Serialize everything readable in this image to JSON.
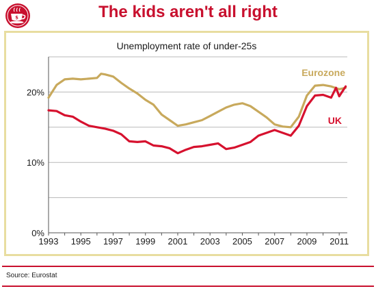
{
  "headline": "The kids aren't all right",
  "logo": {
    "icon": "teacup-logo-icon",
    "color": "#c8102e"
  },
  "source": "Source: Eurostat",
  "colors": {
    "eurozone": "#c8a95c",
    "uk": "#d6112e",
    "accent": "#c8102e",
    "frame": "#e8dda0"
  },
  "chart_data": {
    "type": "line",
    "title": "Unemployment rate of under-25s",
    "xlabel": "",
    "ylabel": "",
    "xlim": [
      1993,
      2011.5
    ],
    "ylim": [
      0,
      25
    ],
    "x_ticks": [
      "1993",
      "1995",
      "1997",
      "1999",
      "2001",
      "2003",
      "2005",
      "2007",
      "2009",
      "2011"
    ],
    "y_ticks": [
      "0%",
      "10%",
      "20%"
    ],
    "grid": "horizontal",
    "series": [
      {
        "name": "Eurozone",
        "x": [
          1993.0,
          1993.5,
          1994.0,
          1994.5,
          1995.0,
          1995.5,
          1996.0,
          1996.25,
          1996.5,
          1997.0,
          1997.5,
          1998.0,
          1998.5,
          1999.0,
          1999.5,
          2000.0,
          2000.5,
          2001.0,
          2001.5,
          2002.0,
          2002.5,
          2003.0,
          2003.5,
          2004.0,
          2004.5,
          2005.0,
          2005.5,
          2006.0,
          2006.5,
          2007.0,
          2007.5,
          2008.0,
          2008.5,
          2009.0,
          2009.5,
          2010.0,
          2010.5,
          2011.0,
          2011.4
        ],
        "values": [
          19.2,
          21.0,
          21.8,
          21.9,
          21.8,
          21.9,
          22.0,
          22.6,
          22.5,
          22.2,
          21.3,
          20.5,
          19.8,
          18.9,
          18.2,
          16.8,
          16.0,
          15.2,
          15.4,
          15.7,
          16.0,
          16.6,
          17.2,
          17.8,
          18.2,
          18.4,
          18.0,
          17.2,
          16.4,
          15.4,
          15.1,
          15.0,
          16.5,
          19.5,
          20.9,
          21.0,
          20.8,
          20.4,
          20.6
        ]
      },
      {
        "name": "UK",
        "x": [
          1993.0,
          1993.5,
          1994.0,
          1994.5,
          1995.0,
          1995.5,
          1996.0,
          1996.5,
          1997.0,
          1997.5,
          1998.0,
          1998.5,
          1999.0,
          1999.5,
          2000.0,
          2000.5,
          2001.0,
          2001.5,
          2002.0,
          2002.5,
          2003.0,
          2003.5,
          2004.0,
          2004.5,
          2005.0,
          2005.5,
          2006.0,
          2006.5,
          2007.0,
          2007.5,
          2008.0,
          2008.5,
          2009.0,
          2009.5,
          2010.0,
          2010.5,
          2010.8,
          2011.0,
          2011.4
        ],
        "values": [
          17.4,
          17.3,
          16.7,
          16.5,
          15.8,
          15.2,
          15.0,
          14.8,
          14.5,
          14.0,
          13.0,
          12.9,
          13.0,
          12.4,
          12.3,
          12.0,
          11.3,
          11.8,
          12.2,
          12.3,
          12.5,
          12.7,
          11.9,
          12.1,
          12.5,
          12.9,
          13.8,
          14.2,
          14.6,
          14.2,
          13.8,
          15.2,
          18.0,
          19.5,
          19.6,
          19.2,
          20.6,
          19.4,
          20.8
        ]
      }
    ],
    "annotations": [
      {
        "text": "Eurozone",
        "series": "Eurozone"
      },
      {
        "text": "UK",
        "series": "UK"
      }
    ]
  }
}
